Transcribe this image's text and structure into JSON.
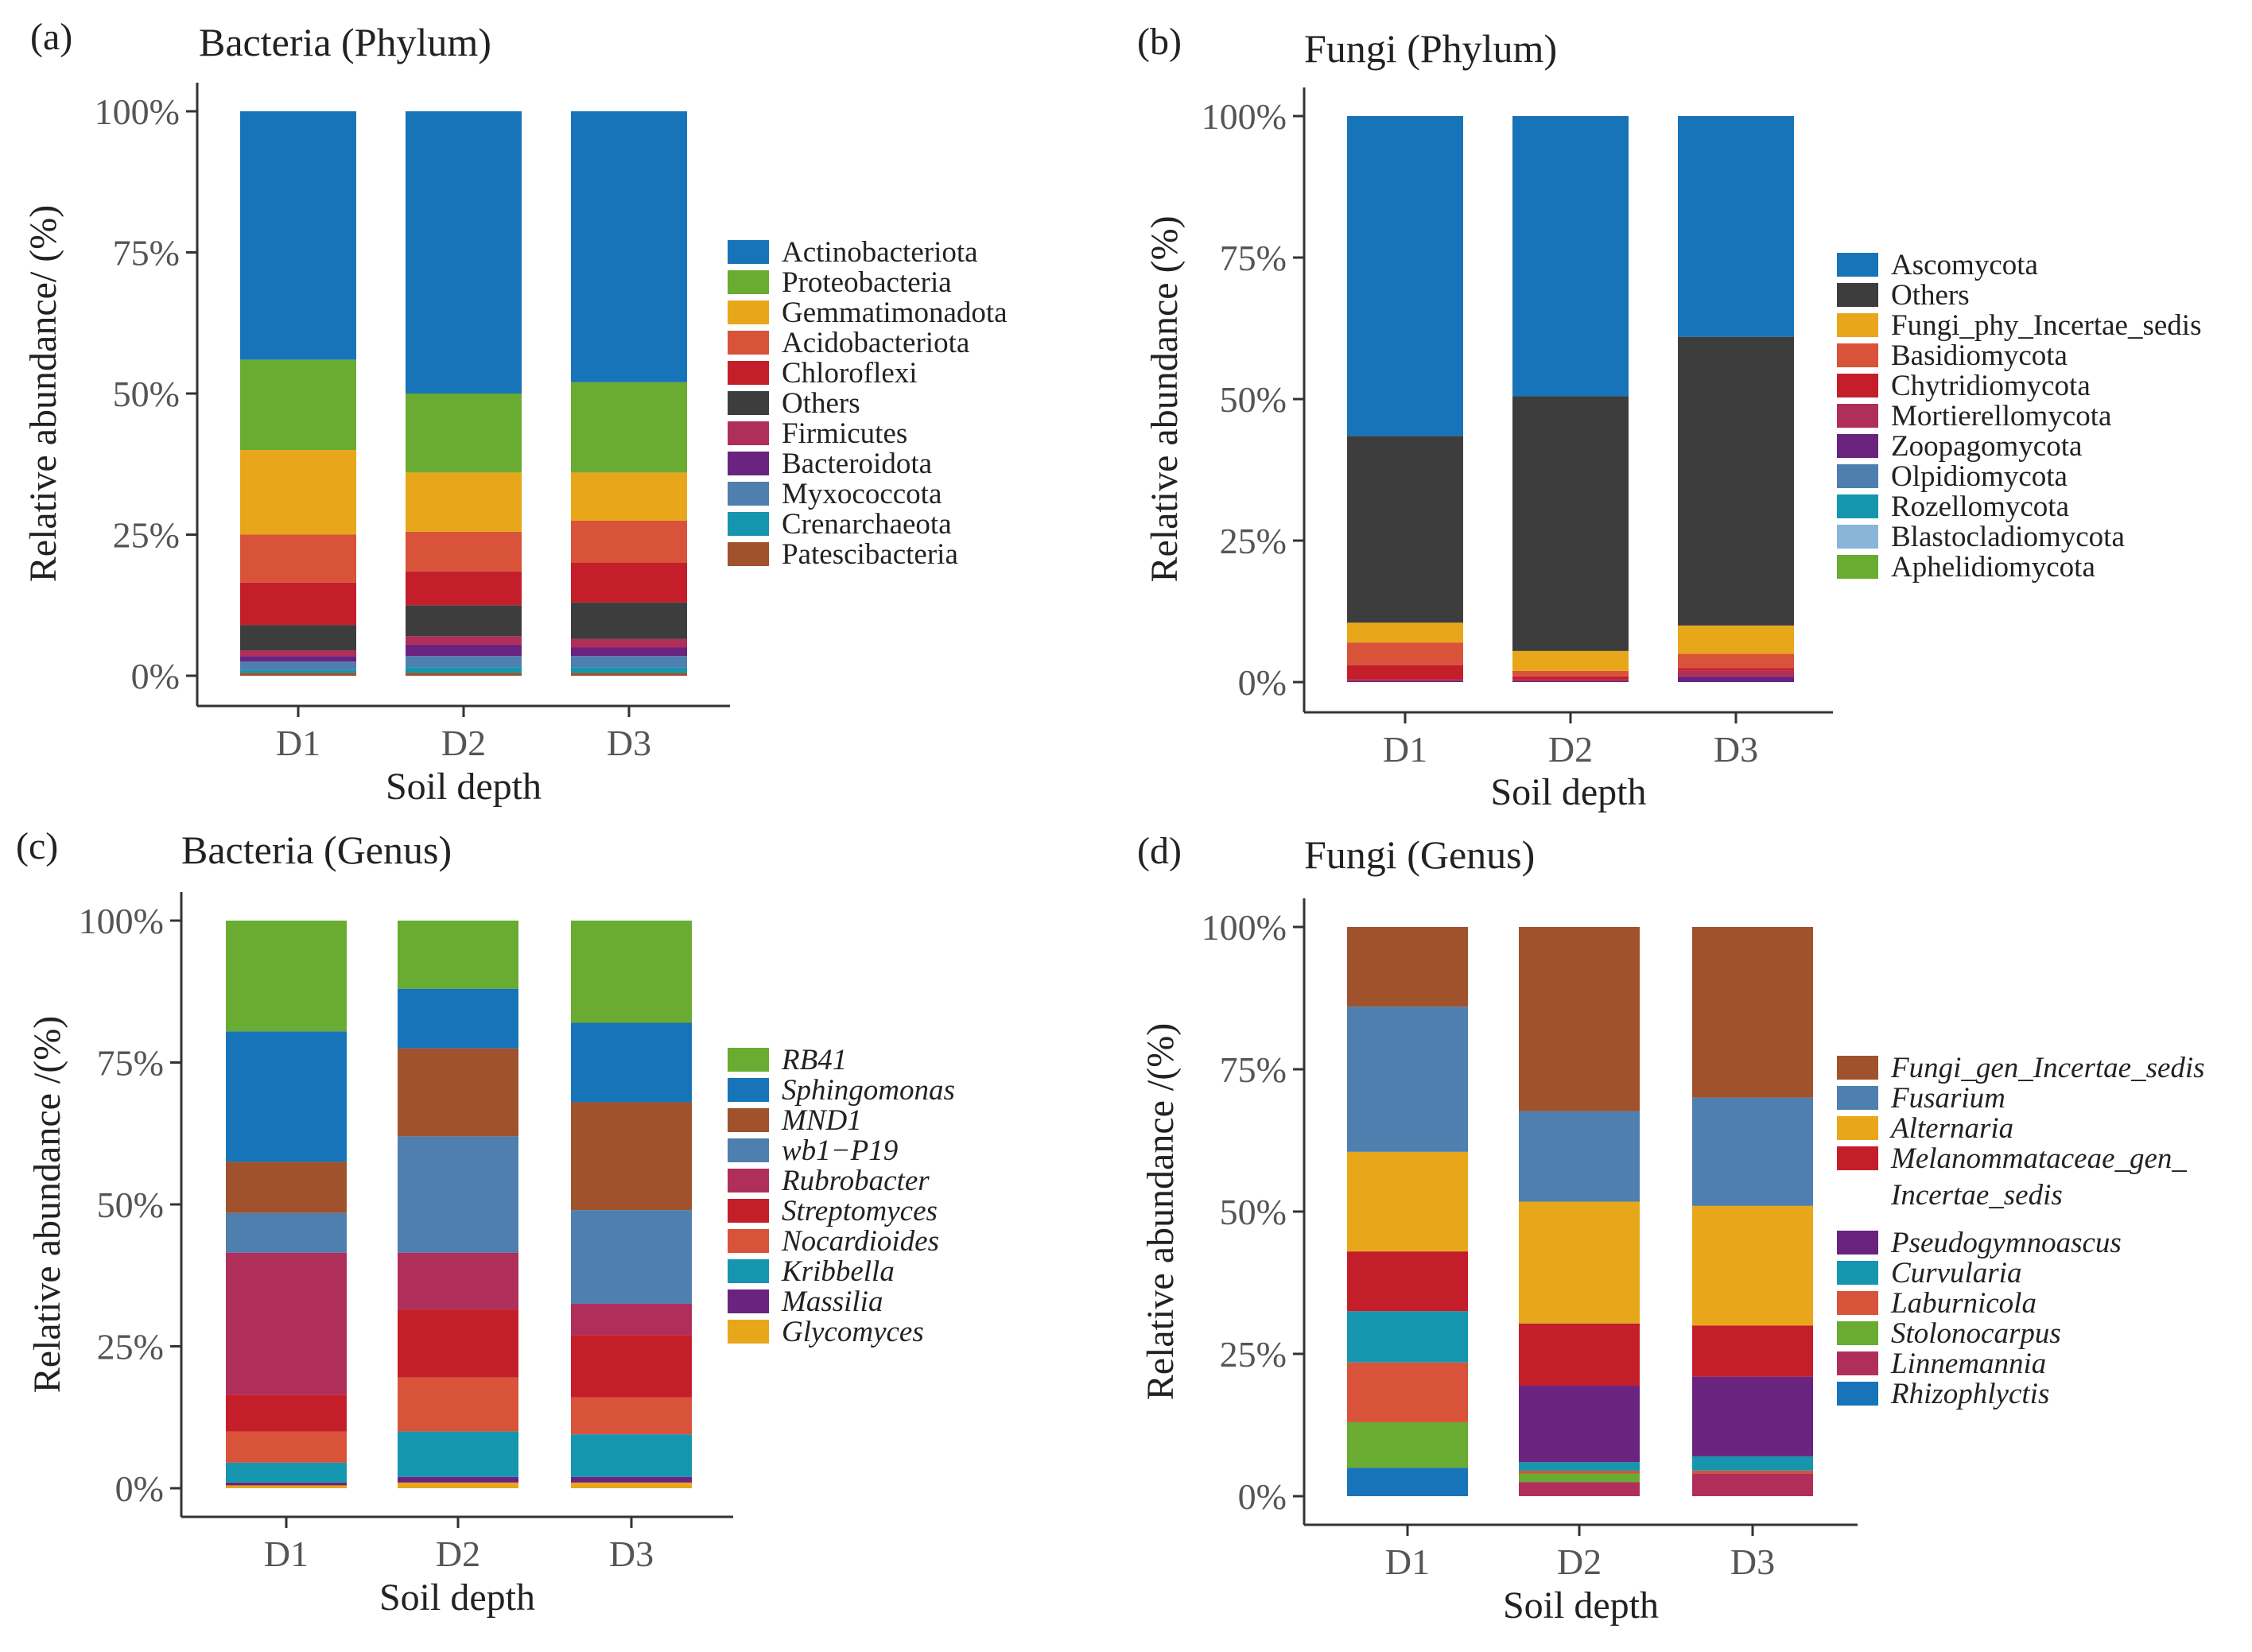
{
  "chart_data": [
    {
      "panel": "(a)",
      "type": "bar",
      "stacked": true,
      "title": "Bacteria (Phylum)",
      "xlabel": "Soil depth",
      "ylabel": "Relative abundance/ (%)",
      "yticks": [
        "0%",
        "25%",
        "50%",
        "75%",
        "100%"
      ],
      "ylim": [
        0,
        100
      ],
      "legend_italic": false,
      "categories": [
        "D1",
        "D2",
        "D3"
      ],
      "series": [
        {
          "name": "Actinobacteriota",
          "color": "#1874b8",
          "values": [
            44,
            50,
            48
          ]
        },
        {
          "name": "Proteobacteria",
          "color": "#6aab31",
          "values": [
            16,
            14,
            16
          ]
        },
        {
          "name": "Gemmatimonadota",
          "color": "#e8a71a",
          "values": [
            15,
            10.5,
            8.5
          ]
        },
        {
          "name": "Acidobacteriota",
          "color": "#d8533a",
          "values": [
            8.5,
            7,
            7.5
          ]
        },
        {
          "name": "Chloroflexi",
          "color": "#c41e2a",
          "values": [
            7.5,
            6,
            7
          ]
        },
        {
          "name": "Others",
          "color": "#3d3d3d",
          "values": [
            4.5,
            5.5,
            6.5
          ]
        },
        {
          "name": "Firmicutes",
          "color": "#b02e5a",
          "values": [
            1,
            1.5,
            1.5
          ]
        },
        {
          "name": "Bacteroidota",
          "color": "#6a237f",
          "values": [
            1,
            2,
            1.5
          ]
        },
        {
          "name": "Myxococcota",
          "color": "#4e7fae",
          "values": [
            1.5,
            2,
            2
          ]
        },
        {
          "name": "Crenarchaeota",
          "color": "#1596ae",
          "values": [
            0.5,
            1,
            1
          ]
        },
        {
          "name": "Patescibacteria",
          "color": "#a0522d",
          "values": [
            0.5,
            0.5,
            0.5
          ]
        }
      ]
    },
    {
      "panel": "(b)",
      "type": "bar",
      "stacked": true,
      "title": "Fungi (Phylum)",
      "xlabel": "Soil depth",
      "ylabel": "Relative abundance (%)",
      "yticks": [
        "0%",
        "25%",
        "50%",
        "75%",
        "100%"
      ],
      "ylim": [
        0,
        100
      ],
      "legend_italic": false,
      "categories": [
        "D1",
        "D2",
        "D3"
      ],
      "series": [
        {
          "name": "Ascomycota",
          "color": "#1874b8",
          "values": [
            56.5,
            49.5,
            39
          ]
        },
        {
          "name": "Others",
          "color": "#3d3d3d",
          "values": [
            33,
            45,
            51
          ]
        },
        {
          "name": "Fungi_phy_Incertae_sedis",
          "color": "#e8a71a",
          "values": [
            3.5,
            3.5,
            5
          ]
        },
        {
          "name": "Basidiomycota",
          "color": "#d8533a",
          "values": [
            4,
            1,
            2.5
          ]
        },
        {
          "name": "Chytridiomycota",
          "color": "#c41e2a",
          "values": [
            2.5,
            0.5,
            0.5
          ]
        },
        {
          "name": "Mortierellomycota",
          "color": "#b02e5a",
          "values": [
            0.3,
            0.3,
            1
          ]
        },
        {
          "name": "Zoopagomycota",
          "color": "#6a237f",
          "values": [
            0.2,
            0.2,
            1
          ]
        },
        {
          "name": "Olpidiomycota",
          "color": "#4e7fae",
          "values": [
            0,
            0,
            0
          ]
        },
        {
          "name": "Rozellomycota",
          "color": "#1596ae",
          "values": [
            0,
            0,
            0
          ]
        },
        {
          "name": "Blastocladiomycota",
          "color": "#88b5d8",
          "values": [
            0,
            0,
            0
          ]
        },
        {
          "name": "Aphelidiomycota",
          "color": "#6aab31",
          "values": [
            0,
            0,
            0
          ]
        }
      ]
    },
    {
      "panel": "(c)",
      "type": "bar",
      "stacked": true,
      "title": "Bacteria (Genus)",
      "xlabel": "Soil depth",
      "ylabel": "Relative abundance /(%)",
      "yticks": [
        "0%",
        "25%",
        "50%",
        "75%",
        "100%"
      ],
      "ylim": [
        0,
        100
      ],
      "legend_italic": true,
      "categories": [
        "D1",
        "D2",
        "D3"
      ],
      "series": [
        {
          "name": "RB41",
          "color": "#6aab31",
          "values": [
            19.5,
            12,
            18
          ]
        },
        {
          "name": "Sphingomonas",
          "color": "#1874b8",
          "values": [
            23,
            10.5,
            14
          ]
        },
        {
          "name": "MND1",
          "color": "#a0522d",
          "values": [
            9,
            15.5,
            19
          ]
        },
        {
          "name": "wb1−P19",
          "color": "#4e7fae",
          "values": [
            7,
            20.5,
            16.5
          ]
        },
        {
          "name": "Rubrobacter",
          "color": "#b02e5a",
          "values": [
            25,
            10,
            5.5
          ]
        },
        {
          "name": "Streptomyces",
          "color": "#c41e2a",
          "values": [
            6.5,
            12,
            11
          ]
        },
        {
          "name": "Nocardioides",
          "color": "#d8533a",
          "values": [
            5.5,
            9.5,
            6.5
          ]
        },
        {
          "name": "Kribbella",
          "color": "#1596ae",
          "values": [
            3.5,
            8,
            7.5
          ]
        },
        {
          "name": "Massilia",
          "color": "#6a237f",
          "values": [
            0.5,
            1,
            1
          ]
        },
        {
          "name": "Glycomyces",
          "color": "#e8a71a",
          "values": [
            0.5,
            1,
            1
          ]
        }
      ]
    },
    {
      "panel": "(d)",
      "type": "bar",
      "stacked": true,
      "title": "Fungi (Genus)",
      "xlabel": "Soil depth",
      "ylabel": "Relative abundance /(%)",
      "yticks": [
        "0%",
        "25%",
        "50%",
        "75%",
        "100%"
      ],
      "ylim": [
        0,
        100
      ],
      "legend_italic": true,
      "categories": [
        "D1",
        "D2",
        "D3"
      ],
      "series": [
        {
          "name": "Fungi_gen_Incertae_sedis",
          "color": "#a0522d",
          "values": [
            14,
            32.5,
            30
          ]
        },
        {
          "name": "Fusarium",
          "color": "#4e7fae",
          "values": [
            25.5,
            16,
            19
          ]
        },
        {
          "name": "Alternaria",
          "color": "#e8a71a",
          "values": [
            17.5,
            21.5,
            21
          ]
        },
        {
          "name": "Melanommataceae_gen_ Incertae_sedis",
          "label_lines": [
            "Melanommataceae_gen_",
            "Incertae_sedis"
          ],
          "color": "#c41e2a",
          "values": [
            10.5,
            11,
            9
          ]
        },
        {
          "name": "Pseudogymnoascus",
          "color": "#6a237f",
          "values": [
            0,
            13.5,
            14
          ]
        },
        {
          "name": "Curvularia",
          "color": "#1596ae",
          "values": [
            9,
            1.5,
            2.5
          ]
        },
        {
          "name": "Laburnicola",
          "color": "#d8533a",
          "values": [
            10.5,
            0.5,
            0.5
          ]
        },
        {
          "name": "Stolonocarpus",
          "color": "#6aab31",
          "values": [
            8,
            1.5,
            0
          ]
        },
        {
          "name": "Linnemannia",
          "color": "#b02e5a",
          "values": [
            0,
            2.5,
            4
          ]
        },
        {
          "name": "Rhizophlyctis",
          "color": "#1874b8",
          "values": [
            5,
            0,
            0
          ]
        }
      ]
    }
  ]
}
